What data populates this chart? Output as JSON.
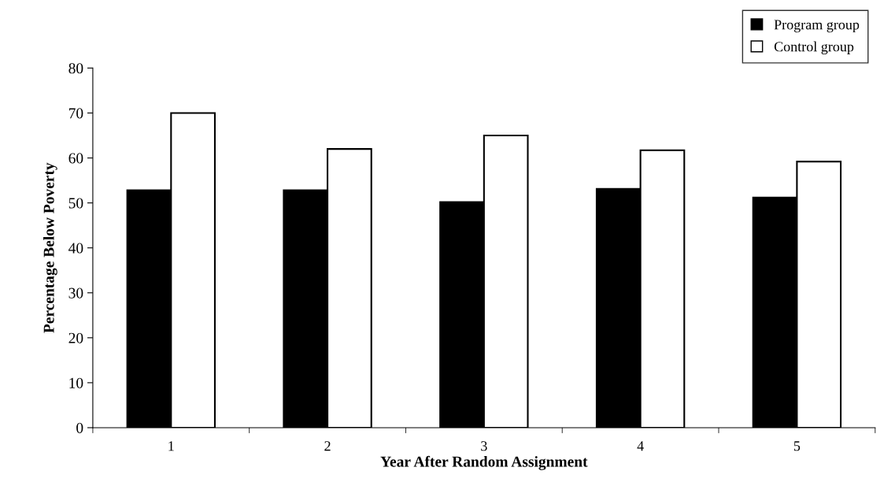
{
  "chart_data": {
    "type": "bar",
    "xlabel": "Year After Random Assignment",
    "ylabel": "Percentage Below Poverty",
    "categories": [
      "1",
      "2",
      "3",
      "4",
      "5"
    ],
    "series": [
      {
        "name": "Program group",
        "color": "#000000",
        "values": [
          52.8,
          52.8,
          50.2,
          53.1,
          51.2
        ]
      },
      {
        "name": "Control group",
        "color": "#ffffff",
        "values": [
          70,
          62,
          65,
          61.7,
          59.2
        ]
      }
    ],
    "ylim": [
      0,
      80
    ],
    "yticks": [
      0,
      10,
      20,
      30,
      40,
      50,
      60,
      70,
      80
    ],
    "grid": false,
    "legend": "top right"
  }
}
